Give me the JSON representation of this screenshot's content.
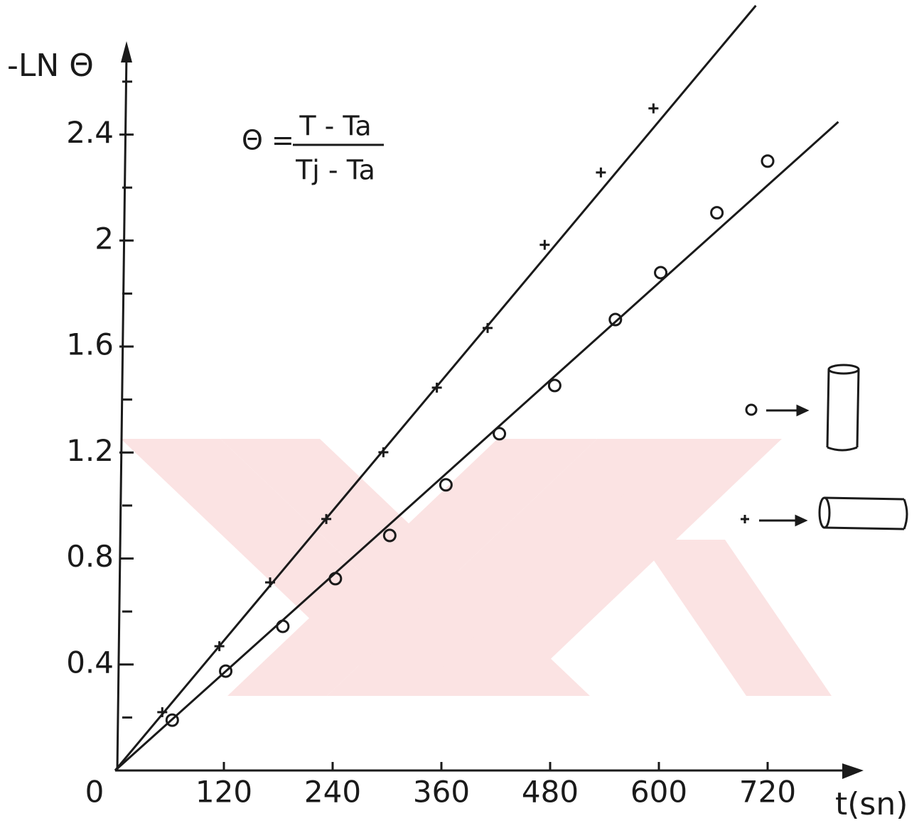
{
  "chart_data": {
    "type": "scatter",
    "y_label": "-LN Θ",
    "x_label": "t(sn)",
    "formula": {
      "lhs": "Θ =",
      "numerator": "T - Ta",
      "denominator": "Tj - Ta"
    },
    "xlim": [
      0,
      820
    ],
    "ylim": [
      0,
      2.9
    ],
    "xticks": [
      0,
      120,
      240,
      360,
      480,
      600,
      720
    ],
    "yticks": [
      0.4,
      0.8,
      1.2,
      1.6,
      2.0,
      2.4
    ],
    "yminorticks": [
      0.2,
      0.6,
      1.0,
      1.4,
      1.8,
      2.2,
      2.6
    ],
    "series": [
      {
        "marker": "circle",
        "color": "#1a1a1a",
        "x": [
          63,
          122,
          185,
          243,
          303,
          365,
          424,
          485,
          552,
          602,
          664,
          720
        ],
        "values": [
          0.19,
          0.375,
          0.544,
          0.724,
          0.887,
          1.078,
          1.271,
          1.453,
          1.702,
          1.879,
          2.105,
          2.3
        ],
        "fit": {
          "x": [
            0,
            798
          ],
          "values": [
            0,
            2.448
          ]
        }
      },
      {
        "marker": "plus",
        "color": "#1a1a1a",
        "x": [
          52,
          115,
          171,
          233,
          296,
          355,
          411,
          474,
          536,
          594
        ],
        "values": [
          0.22,
          0.469,
          0.71,
          0.949,
          1.201,
          1.445,
          1.67,
          1.984,
          2.257,
          2.499
        ],
        "fit": {
          "x": [
            0,
            707
          ],
          "values": [
            0,
            2.887
          ]
        }
      }
    ]
  }
}
